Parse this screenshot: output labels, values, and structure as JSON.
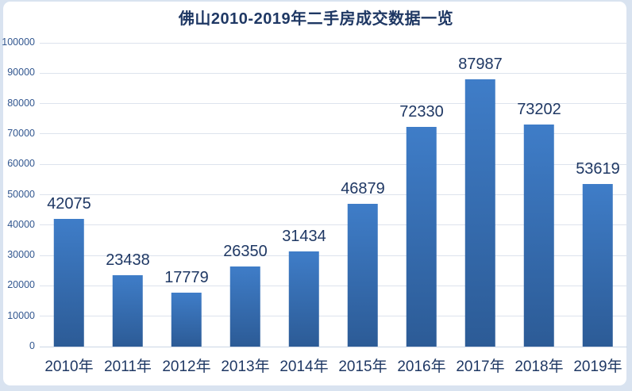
{
  "page": {
    "background": "#d9e3f0",
    "panel_background": "#ffffff"
  },
  "chart_data": {
    "type": "bar",
    "title": "佛山2010-2019年二手房成交数据一览",
    "categories": [
      "2010年",
      "2011年",
      "2012年",
      "2013年",
      "2014年",
      "2015年",
      "2016年",
      "2017年",
      "2018年",
      "2019年"
    ],
    "values": [
      42075,
      23438,
      17779,
      26350,
      31434,
      46879,
      72330,
      87987,
      73202,
      53619
    ],
    "data_labels": [
      "42075",
      "23438",
      "17779",
      "26350",
      "31434",
      "46879",
      "72330",
      "87987",
      "73202",
      "53619"
    ],
    "xlabel": "",
    "ylabel": "",
    "ylim": [
      0,
      100000
    ],
    "ytick_interval": 10000,
    "yticks": [
      "0",
      "10000",
      "20000",
      "30000",
      "40000",
      "50000",
      "60000",
      "70000",
      "80000",
      "90000",
      "100000"
    ],
    "grid": true,
    "legend": "none",
    "colors": {
      "bar_top": "#3f7dc8",
      "bar_bottom": "#2c5b96",
      "gridline": "#dde3ed",
      "axis_line": "#ccd6e4",
      "title_text": "#1f3864",
      "tick_text": "#31568f",
      "category_text": "#1f3864",
      "data_label_text": "#1f3864"
    }
  }
}
